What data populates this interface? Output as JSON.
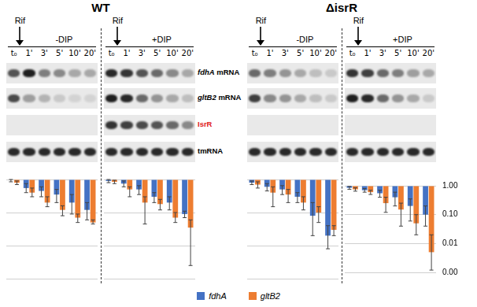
{
  "figure": {
    "rows": [
      {
        "label": "fdhA mRNA",
        "color": "#000000"
      },
      {
        "label": "gltB2 mRNA",
        "color": "#000000"
      },
      {
        "label": "IsrR",
        "color": "#e0201b"
      },
      {
        "label": "tmRNA",
        "color": "#000000"
      }
    ],
    "panels": [
      {
        "title": "WT",
        "conditions": [
          {
            "treatment": "Rif",
            "label": "-DIP",
            "lanes": [
              "t₀",
              "1'",
              "3'",
              "5'",
              "10'",
              "20'"
            ]
          },
          {
            "treatment": "Rif",
            "label": "+DIP",
            "lanes": [
              "t₀",
              "1'",
              "3'",
              "5'",
              "10'",
              "20'"
            ]
          }
        ],
        "intensity": [
          [
            [
              0.7,
              0.95,
              0.5,
              0.45,
              0.3,
              0.3
            ],
            [
              0.9,
              0.85,
              0.7,
              0.6,
              0.45,
              0.3
            ]
          ],
          [
            [
              0.75,
              0.35,
              0.25,
              0.15,
              0.1,
              0.1
            ],
            [
              0.95,
              0.9,
              0.6,
              0.4,
              0.3,
              0.2
            ]
          ],
          [
            [
              0,
              0,
              0,
              0,
              0,
              0
            ],
            [
              0.85,
              0.8,
              0.75,
              0.7,
              0.6,
              0.45
            ]
          ],
          [
            [
              0.9,
              0.9,
              0.9,
              0.9,
              0.9,
              0.9
            ],
            [
              0.9,
              0.9,
              0.9,
              0.9,
              0.9,
              0.9
            ]
          ]
        ]
      },
      {
        "title": "ΔisrR",
        "conditions": [
          {
            "treatment": "Rif",
            "label": "-DIP",
            "lanes": [
              "t₀",
              "1'",
              "3'",
              "5'",
              "10'",
              "20'"
            ]
          },
          {
            "treatment": "Rif",
            "label": "+DIP",
            "lanes": [
              "t₀",
              "1'",
              "3'",
              "5'",
              "10'",
              "20'"
            ]
          }
        ],
        "intensity": [
          [
            [
              0.6,
              0.5,
              0.4,
              0.3,
              0.2,
              0.15
            ],
            [
              0.85,
              0.8,
              0.6,
              0.5,
              0.35,
              0.3
            ]
          ],
          [
            [
              0.8,
              0.45,
              0.4,
              0.3,
              0.2,
              0.15
            ],
            [
              0.95,
              0.9,
              0.6,
              0.4,
              0.3,
              0.15
            ]
          ],
          [
            [
              0,
              0,
              0,
              0,
              0,
              0
            ],
            [
              0,
              0,
              0,
              0,
              0,
              0
            ]
          ],
          [
            [
              0.9,
              0.9,
              0.9,
              0.9,
              0.9,
              0.9
            ],
            [
              0.9,
              0.9,
              0.9,
              0.9,
              0.9,
              0.9
            ]
          ]
        ]
      }
    ]
  },
  "chart_data": [
    {
      "type": "bar",
      "categories": [
        null,
        null,
        null,
        null,
        null,
        null
      ],
      "log": "y",
      "grid": true,
      "tick_labels": false,
      "legend": "bottom",
      "ylim": [
        0.001,
        1
      ],
      "yticks": [
        {
          "value": 1,
          "label": "1.00"
        },
        {
          "value": 0.1,
          "label": "0.10"
        },
        {
          "value": 0.01,
          "label": "0.01"
        },
        {
          "value": 0.001,
          "label": "0.00"
        }
      ],
      "series": [
        {
          "name": "fdhA",
          "color": "#4472c4",
          "values": [
            1,
            0.55,
            0.45,
            0.35,
            0.2,
            0.12
          ],
          "error_low": [
            0.85,
            0.4,
            0.3,
            0.2,
            0.09,
            0.06
          ],
          "error_high": [
            1,
            0.75,
            0.6,
            0.5,
            0.35,
            0.2
          ]
        },
        {
          "name": "gltB2",
          "color": "#ed7d31",
          "values": [
            0.8,
            0.4,
            0.2,
            0.12,
            0.07,
            0.05
          ],
          "error_low": [
            0.7,
            0.3,
            0.15,
            0.08,
            0.05,
            0.045
          ],
          "error_high": [
            0.9,
            0.55,
            0.3,
            0.16,
            0.09,
            0.06
          ]
        }
      ]
    },
    {
      "type": "bar",
      "categories": [
        null,
        null,
        null,
        null,
        null,
        null
      ],
      "log": "y",
      "grid": true,
      "tick_labels": false,
      "ylim": [
        0.001,
        1
      ],
      "yticks": [
        {
          "value": 1,
          "label": "1.00"
        },
        {
          "value": 0.1,
          "label": "0.10"
        },
        {
          "value": 0.01,
          "label": "0.01"
        },
        {
          "value": 0.001,
          "label": "0.00"
        }
      ],
      "series": [
        {
          "name": "fdhA",
          "color": "#4472c4",
          "values": [
            0.9,
            0.75,
            0.5,
            0.3,
            0.2,
            0.09
          ],
          "error_low": [
            0.8,
            0.6,
            0.35,
            0.2,
            0.12,
            0.07
          ],
          "error_high": [
            1,
            0.9,
            0.65,
            0.4,
            0.3,
            0.11
          ]
        },
        {
          "name": "gltB2",
          "color": "#ed7d31",
          "values": [
            0.85,
            0.5,
            0.2,
            0.18,
            0.07,
            0.035
          ],
          "error_low": [
            0.75,
            0.3,
            0.045,
            0.12,
            0.05,
            0.0025
          ],
          "error_high": [
            0.95,
            0.6,
            0.3,
            0.25,
            0.1,
            0.06
          ]
        }
      ]
    },
    {
      "type": "bar",
      "categories": [
        null,
        null,
        null,
        null,
        null,
        null
      ],
      "log": "y",
      "grid": true,
      "tick_labels": false,
      "ylim": [
        0.001,
        1
      ],
      "yticks": [
        {
          "value": 1,
          "label": "1.00"
        },
        {
          "value": 0.1,
          "label": "0.10"
        },
        {
          "value": 0.01,
          "label": "0.01"
        },
        {
          "value": 0.001,
          "label": "0.00"
        }
      ],
      "series": [
        {
          "name": "fdhA",
          "color": "#4472c4",
          "values": [
            0.8,
            0.6,
            0.5,
            0.3,
            0.08,
            0.02
          ],
          "error_low": [
            0.7,
            0.45,
            0.35,
            0.2,
            0.02,
            0.008
          ],
          "error_high": [
            0.9,
            0.75,
            0.65,
            0.4,
            0.2,
            0.04
          ]
        },
        {
          "name": "gltB2",
          "color": "#ed7d31",
          "values": [
            0.7,
            0.4,
            0.35,
            0.2,
            0.1,
            0.03
          ],
          "error_low": [
            0.55,
            0.15,
            0.2,
            0.12,
            0.05,
            0.02
          ],
          "error_high": [
            0.85,
            0.6,
            0.5,
            0.3,
            0.15,
            0.04
          ]
        }
      ]
    },
    {
      "type": "bar",
      "categories": [
        null,
        null,
        null,
        null,
        null,
        null
      ],
      "log": "y",
      "grid": true,
      "tick_labels": "y",
      "ylim": [
        0.001,
        1
      ],
      "yticks": [
        {
          "value": 1,
          "label": "1.00"
        },
        {
          "value": 0.1,
          "label": "0.10"
        },
        {
          "value": 0.01,
          "label": "0.01"
        },
        {
          "value": 0.001,
          "label": "0.00"
        }
      ],
      "series": [
        {
          "name": "fdhA",
          "color": "#4472c4",
          "values": [
            0.85,
            0.7,
            0.55,
            0.4,
            0.2,
            0.1
          ],
          "error_low": [
            0.75,
            0.6,
            0.4,
            0.2,
            0.06,
            0.04
          ],
          "error_high": [
            0.95,
            0.8,
            0.7,
            0.6,
            0.35,
            0.2
          ]
        },
        {
          "name": "gltB2",
          "color": "#ed7d31",
          "values": [
            0.75,
            0.6,
            0.25,
            0.15,
            0.05,
            0.005
          ],
          "error_low": [
            0.65,
            0.5,
            0.12,
            0.04,
            0.02,
            0.0012
          ],
          "error_high": [
            0.85,
            0.7,
            0.4,
            0.25,
            0.1,
            0.02
          ]
        }
      ]
    }
  ]
}
